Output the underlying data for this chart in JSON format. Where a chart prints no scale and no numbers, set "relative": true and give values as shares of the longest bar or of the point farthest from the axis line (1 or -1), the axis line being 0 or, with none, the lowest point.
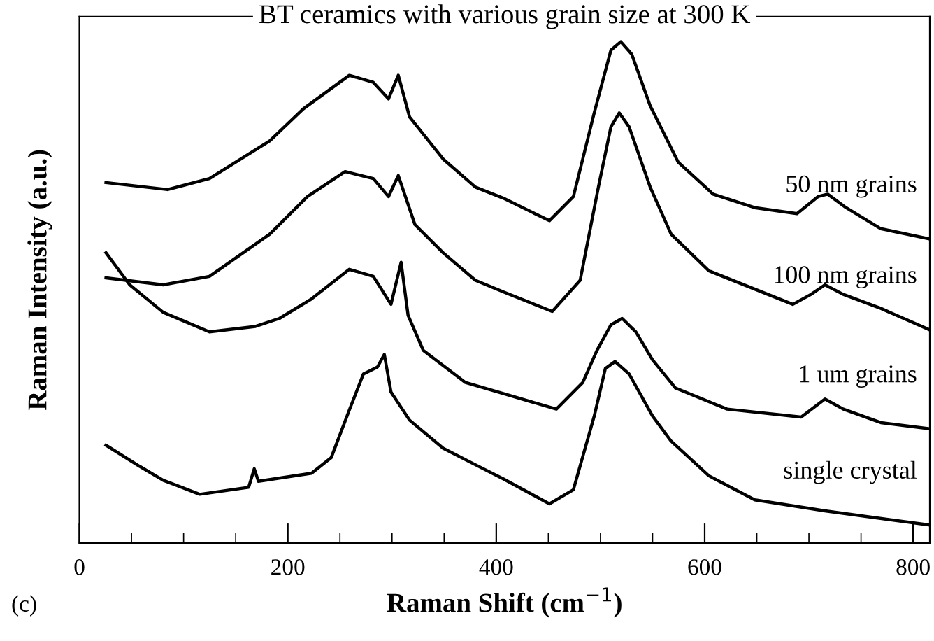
{
  "chart_data": {
    "type": "line",
    "title": "BT ceramics with various grain size at 300 K",
    "xlabel": "Raman Shift (cm$^{−1}$)",
    "ylabel": "Raman Intensity (a.u.)",
    "annotations": [
      "(c)"
    ],
    "relative": true,
    "grid": false,
    "legend": false,
    "marker": "none",
    "line_style": "solid",
    "xlim": [
      0,
      816
    ],
    "xticks": [
      0,
      {
        "value": 50,
        "label": null
      },
      {
        "value": 100,
        "label": null
      },
      {
        "value": 150,
        "label": null
      },
      200,
      {
        "value": 250,
        "label": null
      },
      {
        "value": 300,
        "label": null
      },
      {
        "value": 350,
        "label": null
      },
      400,
      {
        "value": 450,
        "label": null
      },
      {
        "value": 500,
        "label": null
      },
      {
        "value": 550,
        "label": null
      },
      600,
      {
        "value": 650,
        "label": null
      },
      {
        "value": 700,
        "label": null
      },
      {
        "value": 750,
        "label": null
      },
      800
    ],
    "series": [
      {
        "name": "50 nm grains",
        "color": "#000000",
        "x": [
          25.5,
          84.6,
          124.8,
          182.6,
          214.8,
          259,
          282,
          296.6,
          306,
          316.8,
          349,
          380,
          406.7,
          451,
          474,
          494,
          510,
          519.5,
          530,
          547.7,
          574.5,
          608,
          648,
          688.6,
          708.7,
          718,
          735.6,
          769,
          815
        ],
        "values": [
          0.719,
          0.705,
          0.727,
          0.802,
          0.866,
          0.933,
          0.919,
          0.886,
          0.933,
          0.85,
          0.766,
          0.71,
          0.688,
          0.643,
          0.691,
          0.858,
          0.983,
          1.0,
          0.975,
          0.872,
          0.76,
          0.696,
          0.669,
          0.657,
          0.691,
          0.696,
          0.669,
          0.627,
          0.607
        ]
      },
      {
        "name": "100 nm grains",
        "color": "#000000",
        "x": [
          25.5,
          80.5,
          124.8,
          182.6,
          218.8,
          255,
          282,
          296.6,
          306,
          322,
          349,
          380,
          406.7,
          453.7,
          480.5,
          498,
          510,
          518,
          527.5,
          547.7,
          567.8,
          604,
          684.6,
          702,
          715.4,
          733,
          769,
          815
        ],
        "values": [
          0.529,
          0.515,
          0.532,
          0.616,
          0.691,
          0.741,
          0.727,
          0.691,
          0.733,
          0.635,
          0.579,
          0.524,
          0.501,
          0.462,
          0.524,
          0.71,
          0.83,
          0.858,
          0.83,
          0.71,
          0.616,
          0.543,
          0.476,
          0.496,
          0.515,
          0.496,
          0.468,
          0.426
        ]
      },
      {
        "name": "1 um grains",
        "color": "#000000",
        "x": [
          25.5,
          48.3,
          80.5,
          124.8,
          169,
          192,
          222.8,
          259,
          282,
          299,
          308.7,
          315.4,
          330,
          370.5,
          406.7,
          457.7,
          483,
          496.6,
          510,
          520.8,
          534,
          550,
          572,
          621.5,
          692.6,
          715.4,
          733,
          769,
          815
        ],
        "values": [
          0.579,
          0.515,
          0.46,
          0.421,
          0.432,
          0.448,
          0.487,
          0.546,
          0.532,
          0.476,
          0.56,
          0.454,
          0.384,
          0.32,
          0.298,
          0.267,
          0.32,
          0.384,
          0.435,
          0.448,
          0.421,
          0.365,
          0.309,
          0.267,
          0.251,
          0.287,
          0.267,
          0.24,
          0.228
        ]
      },
      {
        "name": "single crystal",
        "color": "#000000",
        "x": [
          25.5,
          57.7,
          80.5,
          115.4,
          162.4,
          167.8,
          171.8,
          222.8,
          241.6,
          259,
          272.5,
          286,
          292.6,
          299,
          316.8,
          349,
          380,
          406.7,
          451,
          474,
          494,
          504.7,
          514,
          527.5,
          550,
          567.8,
          604,
          648,
          715.4,
          815
        ],
        "values": [
          0.195,
          0.153,
          0.125,
          0.097,
          0.111,
          0.148,
          0.123,
          0.139,
          0.17,
          0.265,
          0.337,
          0.351,
          0.376,
          0.301,
          0.245,
          0.189,
          0.156,
          0.128,
          0.078,
          0.106,
          0.253,
          0.348,
          0.362,
          0.337,
          0.253,
          0.203,
          0.134,
          0.086,
          0.064,
          0.036
        ]
      }
    ]
  }
}
